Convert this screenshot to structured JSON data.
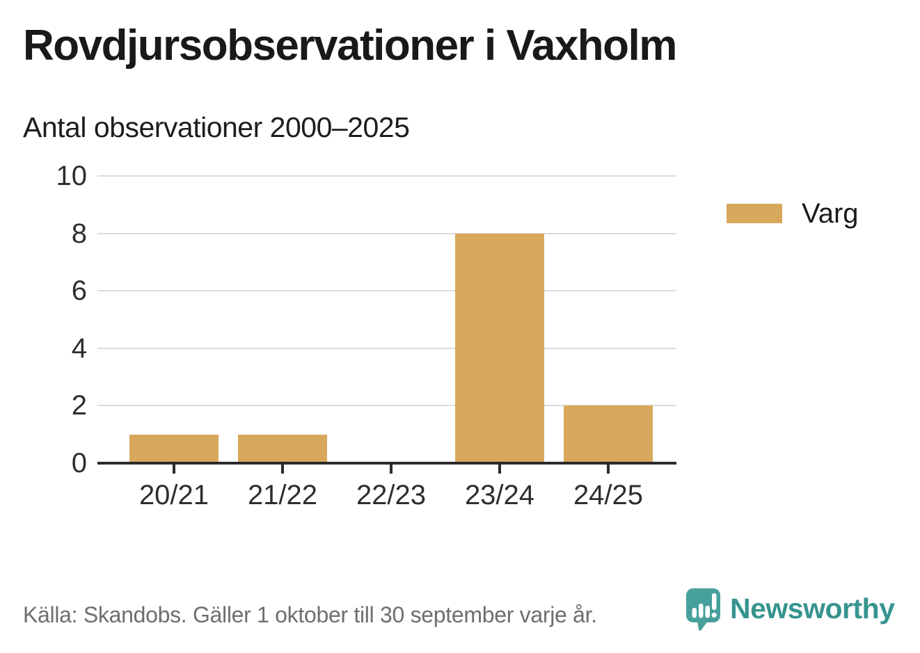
{
  "chart_data": {
    "type": "bar",
    "title": "Rovdjursobservationer i Vaxholm",
    "subtitle": "Antal observationer 2000–2025",
    "categories": [
      "20/21",
      "21/22",
      "22/23",
      "23/24",
      "24/25"
    ],
    "series": [
      {
        "name": "Varg",
        "color": "#d8a85c",
        "values": [
          1,
          1,
          0,
          8,
          2
        ]
      }
    ],
    "xlabel": "",
    "ylabel": "",
    "ylim": [
      0,
      10
    ],
    "yticks": [
      0,
      2,
      4,
      6,
      8,
      10
    ],
    "grid": true,
    "legend_position": "right"
  },
  "legend": {
    "items": [
      {
        "label": "Varg",
        "color": "#d8a85c"
      }
    ]
  },
  "footer": {
    "source": "Källa: Skandobs. Gäller 1 oktober till 30 september varje år.",
    "brand": "Newsworthy"
  },
  "colors": {
    "bar_gold": "#d8a85c",
    "axis": "#2b2b2b",
    "gridline": "#dcdcdc",
    "text_dark": "#191919",
    "text_muted": "#6e6e6e",
    "brand_teal": "#36948f",
    "logo_bubble_teal": "#47a09c"
  }
}
